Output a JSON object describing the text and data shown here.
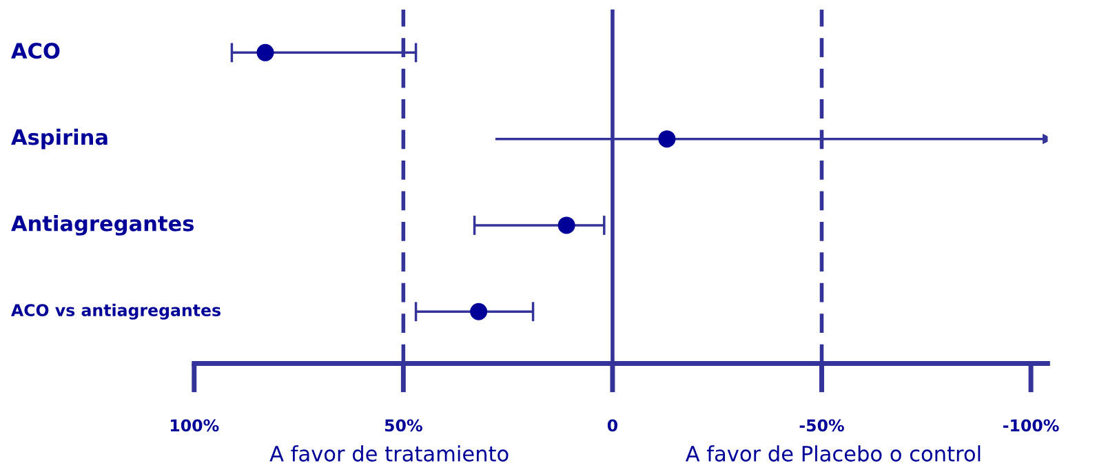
{
  "chart_data": {
    "type": "scatter",
    "orientation": "horizontal",
    "categories": [
      "ACO",
      "Aspirina",
      "Antiagregantes",
      "ACO vs antiagregantes"
    ],
    "series": [
      {
        "color": "#000099",
        "values": [
          83,
          -13,
          11,
          32
        ],
        "errors": [
          [
            47,
            91
          ],
          [
            -104,
            28
          ],
          [
            2,
            33
          ],
          [
            19,
            47
          ]
        ]
      }
    ],
    "xlim": [
      100,
      -104
    ],
    "xticks": [
      {
        "value": 100,
        "label": "100%"
      },
      {
        "value": 50,
        "label": "50%"
      },
      0,
      {
        "value": -50,
        "label": "-50%"
      },
      {
        "value": -100,
        "label": "-100%"
      }
    ],
    "ref_lines": [
      {
        "axis": "x",
        "value": 50,
        "line_style": "dashed",
        "color": "#333399"
      },
      {
        "axis": "x",
        "value": 0,
        "line_style": "solid",
        "color": "#333399"
      },
      {
        "axis": "x",
        "value": -50,
        "line_style": "dashed",
        "color": "#333399"
      }
    ],
    "annotations": [
      "A favor de tratamiento",
      "A favor de Placebo o control"
    ],
    "marker": "circle",
    "grid": false,
    "legend": false
  }
}
